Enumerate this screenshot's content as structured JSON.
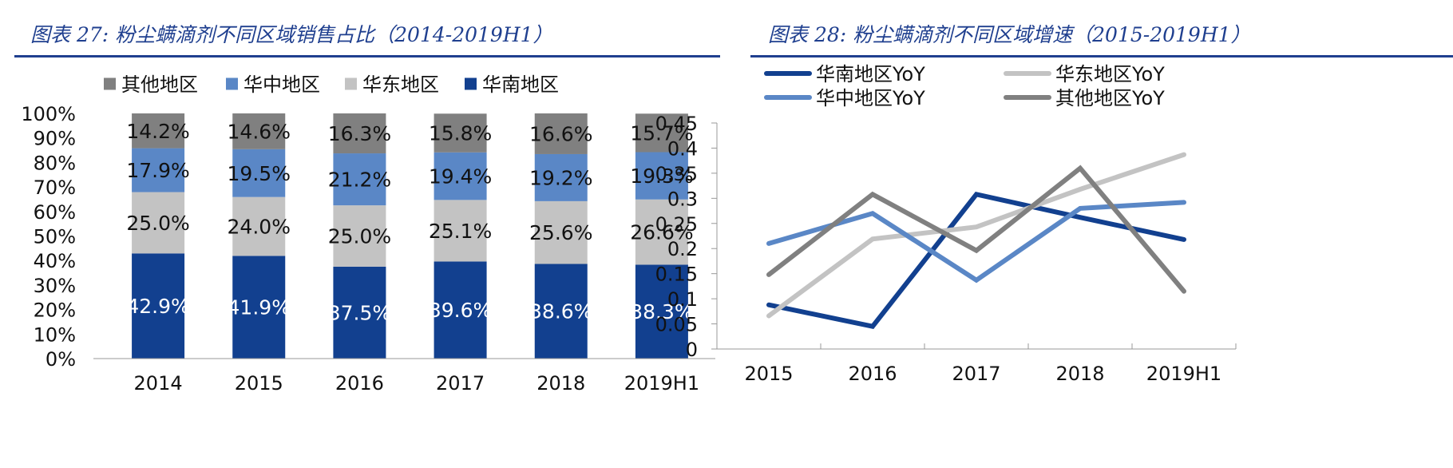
{
  "figure_left": {
    "title": "图表 27:  粉尘螨滴剂不同区域销售占比（2014-2019H1）"
  },
  "figure_right": {
    "title": "图表 28:  粉尘螨滴剂不同区域增速（2015-2019H1）"
  },
  "chart_data": [
    {
      "type": "bar",
      "stacked": true,
      "title": "图表 27:  粉尘螨滴剂不同区域销售占比（2014-2019H1）",
      "categories": [
        "2014",
        "2015",
        "2016",
        "2017",
        "2018",
        "2019H1"
      ],
      "series": [
        {
          "name": "华南地区",
          "color": "#12408F",
          "label_color": "#ffffff",
          "values": [
            42.9,
            41.9,
            37.5,
            39.6,
            38.6,
            38.3
          ],
          "labels": [
            "42.9%",
            "41.9%",
            "37.5%",
            "39.6%",
            "38.6%",
            "38.3%"
          ]
        },
        {
          "name": "华东地区",
          "color": "#C3C3C3",
          "label_color": "#111111",
          "values": [
            25.0,
            24.0,
            25.0,
            25.1,
            25.6,
            26.6
          ],
          "labels": [
            "25.0%",
            "24.0%",
            "25.0%",
            "25.1%",
            "25.6%",
            "26.6%"
          ]
        },
        {
          "name": "华中地区",
          "color": "#5A87C6",
          "label_color": "#111111",
          "values": [
            17.9,
            19.5,
            21.2,
            19.4,
            19.2,
            19.3
          ],
          "labels": [
            "17.9%",
            "19.5%",
            "21.2%",
            "19.4%",
            "19.2%",
            "19.3%"
          ]
        },
        {
          "name": "其他地区",
          "color": "#808080",
          "label_color": "#111111",
          "values": [
            14.2,
            14.6,
            16.3,
            15.8,
            16.6,
            15.7
          ],
          "labels": [
            "14.2%",
            "14.6%",
            "16.3%",
            "15.8%",
            "16.6%",
            "15.7%"
          ]
        }
      ],
      "legend_order": [
        3,
        2,
        1,
        0
      ],
      "yticks": [
        "0%",
        "10%",
        "20%",
        "30%",
        "40%",
        "50%",
        "60%",
        "70%",
        "80%",
        "90%",
        "100%"
      ],
      "ylim": [
        0,
        100
      ],
      "legend": "top"
    },
    {
      "type": "line",
      "title": "图表 28:  粉尘螨滴剂不同区域增速（2015-2019H1）",
      "categories": [
        "2015",
        "2016",
        "2017",
        "2018",
        "2019H1"
      ],
      "series": [
        {
          "name": "华南地区YoY",
          "color": "#12408F",
          "values": [
            0.088,
            0.045,
            0.308,
            0.262,
            0.218
          ]
        },
        {
          "name": "华东地区YoY",
          "color": "#C3C3C3",
          "values": [
            0.066,
            0.219,
            0.243,
            0.318,
            0.387
          ]
        },
        {
          "name": "华中地区YoY",
          "color": "#5A87C6",
          "values": [
            0.21,
            0.27,
            0.137,
            0.28,
            0.292
          ]
        },
        {
          "name": "其他地区YoY",
          "color": "#808080",
          "values": [
            0.148,
            0.308,
            0.196,
            0.36,
            0.115
          ]
        }
      ],
      "legend_order": [
        0,
        1,
        2,
        3
      ],
      "yticks": [
        "0",
        "0.05",
        "0.1",
        "0.15",
        "0.2",
        "0.25",
        "0.3",
        "0.35",
        "0.4",
        "0.45"
      ],
      "ylim": [
        0,
        0.45
      ],
      "legend": "top"
    }
  ]
}
